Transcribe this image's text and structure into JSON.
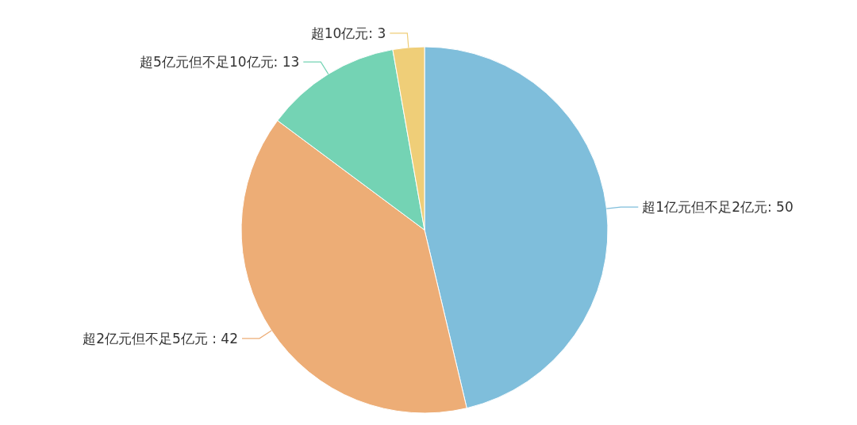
{
  "chart_data": {
    "type": "pie",
    "categories": [
      "超1亿元但不足2亿元",
      "超2亿元但不足5亿元 ",
      "超5亿元但不足10亿元",
      "超10亿元"
    ],
    "values": [
      50,
      42,
      13,
      3
    ],
    "colors": [
      "#7fbedb",
      "#edad76",
      "#74d3b4",
      "#efce78"
    ],
    "value_labels": [
      ": 50",
      ": 42",
      ": 13",
      ": 3"
    ]
  }
}
